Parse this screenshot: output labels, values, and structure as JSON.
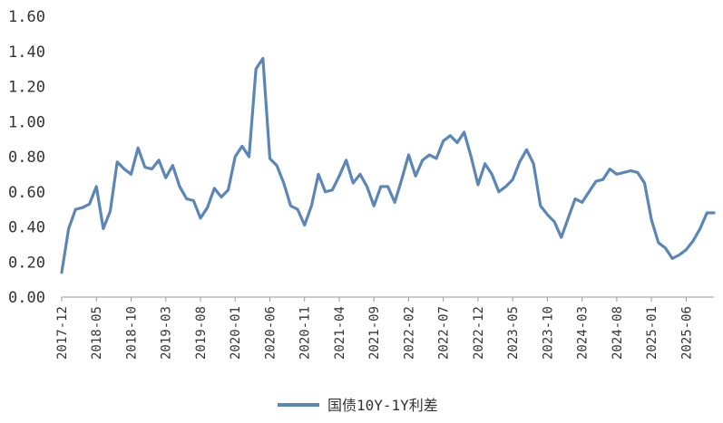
{
  "chart_data": {
    "type": "line",
    "title": "",
    "xlabel": "",
    "ylabel": "",
    "ylim": [
      0,
      1.6
    ],
    "yticks": [
      "0.00",
      "0.20",
      "0.40",
      "0.60",
      "0.80",
      "1.00",
      "1.20",
      "1.40",
      "1.60"
    ],
    "xticks": [
      "2017-12",
      "2018-05",
      "2018-10",
      "2019-03",
      "2019-08",
      "2020-01",
      "2020-06",
      "2020-11",
      "2021-04",
      "2021-09",
      "2022-02",
      "2022-07",
      "2022-12",
      "2023-05",
      "2023-10",
      "2024-03",
      "2024-08",
      "2025-01",
      "2025-06"
    ],
    "x_start": "2017-12",
    "x_end": "2025-10",
    "grid": false,
    "legend_position": "bottom-center",
    "series": [
      {
        "name": "国债10Y-1Y利差",
        "color": "#5b86b5",
        "values": [
          0.14,
          0.39,
          0.5,
          0.51,
          0.53,
          0.63,
          0.39,
          0.49,
          0.77,
          0.73,
          0.7,
          0.85,
          0.74,
          0.73,
          0.78,
          0.68,
          0.75,
          0.63,
          0.56,
          0.55,
          0.45,
          0.51,
          0.62,
          0.57,
          0.61,
          0.8,
          0.86,
          0.8,
          1.3,
          1.36,
          0.79,
          0.75,
          0.65,
          0.52,
          0.5,
          0.41,
          0.52,
          0.7,
          0.6,
          0.61,
          0.69,
          0.78,
          0.65,
          0.7,
          0.63,
          0.52,
          0.63,
          0.63,
          0.54,
          0.67,
          0.81,
          0.69,
          0.78,
          0.81,
          0.79,
          0.89,
          0.92,
          0.88,
          0.94,
          0.8,
          0.64,
          0.76,
          0.7,
          0.6,
          0.63,
          0.67,
          0.77,
          0.84,
          0.76,
          0.52,
          0.47,
          0.43,
          0.34,
          0.45,
          0.56,
          0.54,
          0.6,
          0.66,
          0.67,
          0.73,
          0.7,
          0.71,
          0.72,
          0.71,
          0.65,
          0.44,
          0.31,
          0.28,
          0.22,
          0.24,
          0.27,
          0.32,
          0.39,
          0.48,
          0.48
        ]
      }
    ]
  }
}
